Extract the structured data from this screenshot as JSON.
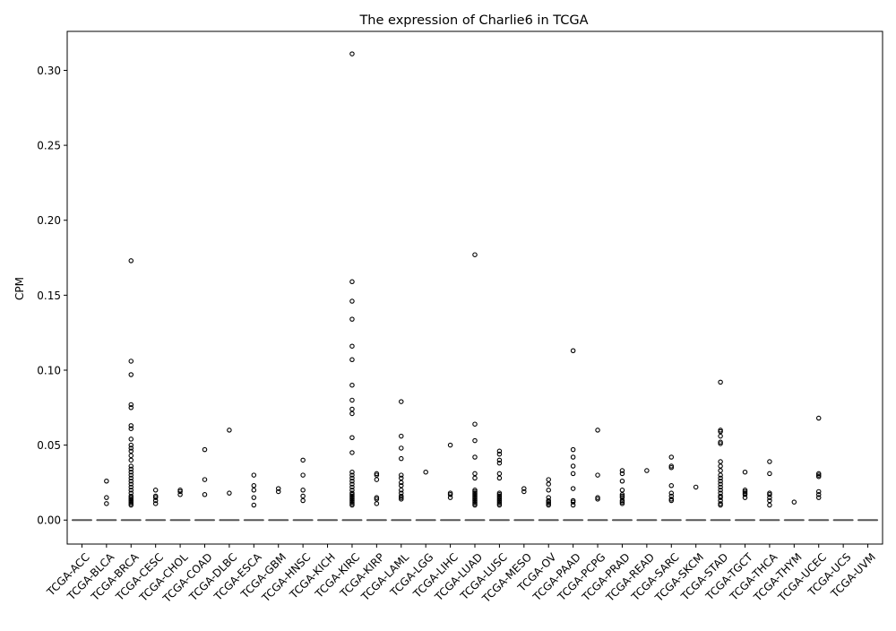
{
  "chart_data": {
    "type": "box",
    "title": "The expression of Charlie6 in TCGA",
    "xlabel": "",
    "ylabel": "CPM",
    "ylim": [
      -0.016,
      0.326
    ],
    "yticks": [
      0.0,
      0.05,
      0.1,
      0.15,
      0.2,
      0.25,
      0.3
    ],
    "ytick_labels": [
      "0.00",
      "0.05",
      "0.10",
      "0.15",
      "0.20",
      "0.25",
      "0.30"
    ],
    "median_color": "#555555",
    "categories": [
      "TCGA-ACC",
      "TCGA-BLCA",
      "TCGA-BRCA",
      "TCGA-CESC",
      "TCGA-CHOL",
      "TCGA-COAD",
      "TCGA-DLBC",
      "TCGA-ESCA",
      "TCGA-GBM",
      "TCGA-HNSC",
      "TCGA-KICH",
      "TCGA-KIRC",
      "TCGA-KIRP",
      "TCGA-LAML",
      "TCGA-LGG",
      "TCGA-LIHC",
      "TCGA-LUAD",
      "TCGA-LUSC",
      "TCGA-MESO",
      "TCGA-OV",
      "TCGA-PAAD",
      "TCGA-PCPG",
      "TCGA-PRAD",
      "TCGA-READ",
      "TCGA-SARC",
      "TCGA-SKCM",
      "TCGA-STAD",
      "TCGA-TGCT",
      "TCGA-THCA",
      "TCGA-THYM",
      "TCGA-UCEC",
      "TCGA-UCS",
      "TCGA-UVM"
    ],
    "boxes": {
      "q1": [
        0,
        0,
        0,
        0,
        0,
        0,
        0,
        0,
        0,
        0,
        0,
        0,
        0,
        0,
        0,
        0,
        0,
        0,
        0,
        0,
        0,
        0,
        0,
        0,
        0,
        0,
        0,
        0,
        0,
        0,
        0,
        0,
        0
      ],
      "median": [
        0,
        0,
        0,
        0,
        0,
        0,
        0,
        0,
        0,
        0,
        0,
        0,
        0,
        0,
        0,
        0,
        0,
        0,
        0,
        0,
        0,
        0,
        0,
        0,
        0,
        0,
        0,
        0,
        0,
        0,
        0,
        0,
        0
      ],
      "q3": [
        0,
        0,
        0,
        0,
        0,
        0,
        0,
        0,
        0,
        0,
        0,
        0,
        0,
        0,
        0,
        0,
        0,
        0,
        0,
        0,
        0,
        0,
        0,
        0,
        0,
        0,
        0,
        0,
        0,
        0,
        0,
        0,
        0
      ]
    },
    "outliers": [
      [],
      [
        0.011,
        0.015,
        0.026
      ],
      [
        0.01,
        0.011,
        0.012,
        0.013,
        0.014,
        0.015,
        0.016,
        0.018,
        0.02,
        0.022,
        0.024,
        0.026,
        0.028,
        0.03,
        0.032,
        0.034,
        0.036,
        0.04,
        0.043,
        0.046,
        0.048,
        0.05,
        0.054,
        0.061,
        0.063,
        0.075,
        0.077,
        0.097,
        0.106,
        0.173
      ],
      [
        0.011,
        0.013,
        0.015,
        0.016,
        0.02
      ],
      [
        0.017,
        0.019,
        0.02
      ],
      [
        0.017,
        0.027,
        0.047
      ],
      [
        0.018,
        0.06
      ],
      [
        0.01,
        0.015,
        0.02,
        0.023,
        0.03
      ],
      [
        0.019,
        0.021
      ],
      [
        0.013,
        0.016,
        0.02,
        0.03,
        0.04
      ],
      [],
      [
        0.01,
        0.011,
        0.012,
        0.013,
        0.014,
        0.015,
        0.016,
        0.017,
        0.018,
        0.02,
        0.022,
        0.024,
        0.026,
        0.028,
        0.03,
        0.032,
        0.045,
        0.055,
        0.071,
        0.074,
        0.08,
        0.09,
        0.107,
        0.116,
        0.134,
        0.146,
        0.159,
        0.311
      ],
      [
        0.011,
        0.014,
        0.015,
        0.027,
        0.03,
        0.031
      ],
      [
        0.014,
        0.015,
        0.016,
        0.018,
        0.02,
        0.023,
        0.025,
        0.028,
        0.03,
        0.041,
        0.048,
        0.056,
        0.079
      ],
      [
        0.032
      ],
      [
        0.015,
        0.017,
        0.018,
        0.05
      ],
      [
        0.01,
        0.011,
        0.012,
        0.013,
        0.014,
        0.015,
        0.016,
        0.017,
        0.018,
        0.019,
        0.02,
        0.028,
        0.031,
        0.042,
        0.053,
        0.064,
        0.177
      ],
      [
        0.01,
        0.011,
        0.012,
        0.013,
        0.014,
        0.015,
        0.016,
        0.017,
        0.018,
        0.028,
        0.031,
        0.038,
        0.04,
        0.044,
        0.046
      ],
      [
        0.019,
        0.021
      ],
      [
        0.01,
        0.011,
        0.012,
        0.013,
        0.015,
        0.02,
        0.024,
        0.027
      ],
      [
        0.01,
        0.012,
        0.013,
        0.021,
        0.031,
        0.036,
        0.042,
        0.047,
        0.113
      ],
      [
        0.014,
        0.015,
        0.03,
        0.06
      ],
      [
        0.011,
        0.012,
        0.013,
        0.015,
        0.016,
        0.017,
        0.02,
        0.026,
        0.031,
        0.033
      ],
      [
        0.033
      ],
      [
        0.013,
        0.014,
        0.016,
        0.018,
        0.023,
        0.035,
        0.036,
        0.042
      ],
      [
        0.022
      ],
      [
        0.01,
        0.011,
        0.013,
        0.015,
        0.016,
        0.018,
        0.02,
        0.022,
        0.024,
        0.026,
        0.028,
        0.03,
        0.033,
        0.036,
        0.039,
        0.051,
        0.052,
        0.056,
        0.059,
        0.06,
        0.092
      ],
      [
        0.015,
        0.017,
        0.018,
        0.019,
        0.02,
        0.032
      ],
      [
        0.01,
        0.013,
        0.015,
        0.017,
        0.018,
        0.031,
        0.039
      ],
      [
        0.012
      ],
      [
        0.015,
        0.017,
        0.019,
        0.029,
        0.03,
        0.031,
        0.068
      ],
      [],
      []
    ]
  }
}
